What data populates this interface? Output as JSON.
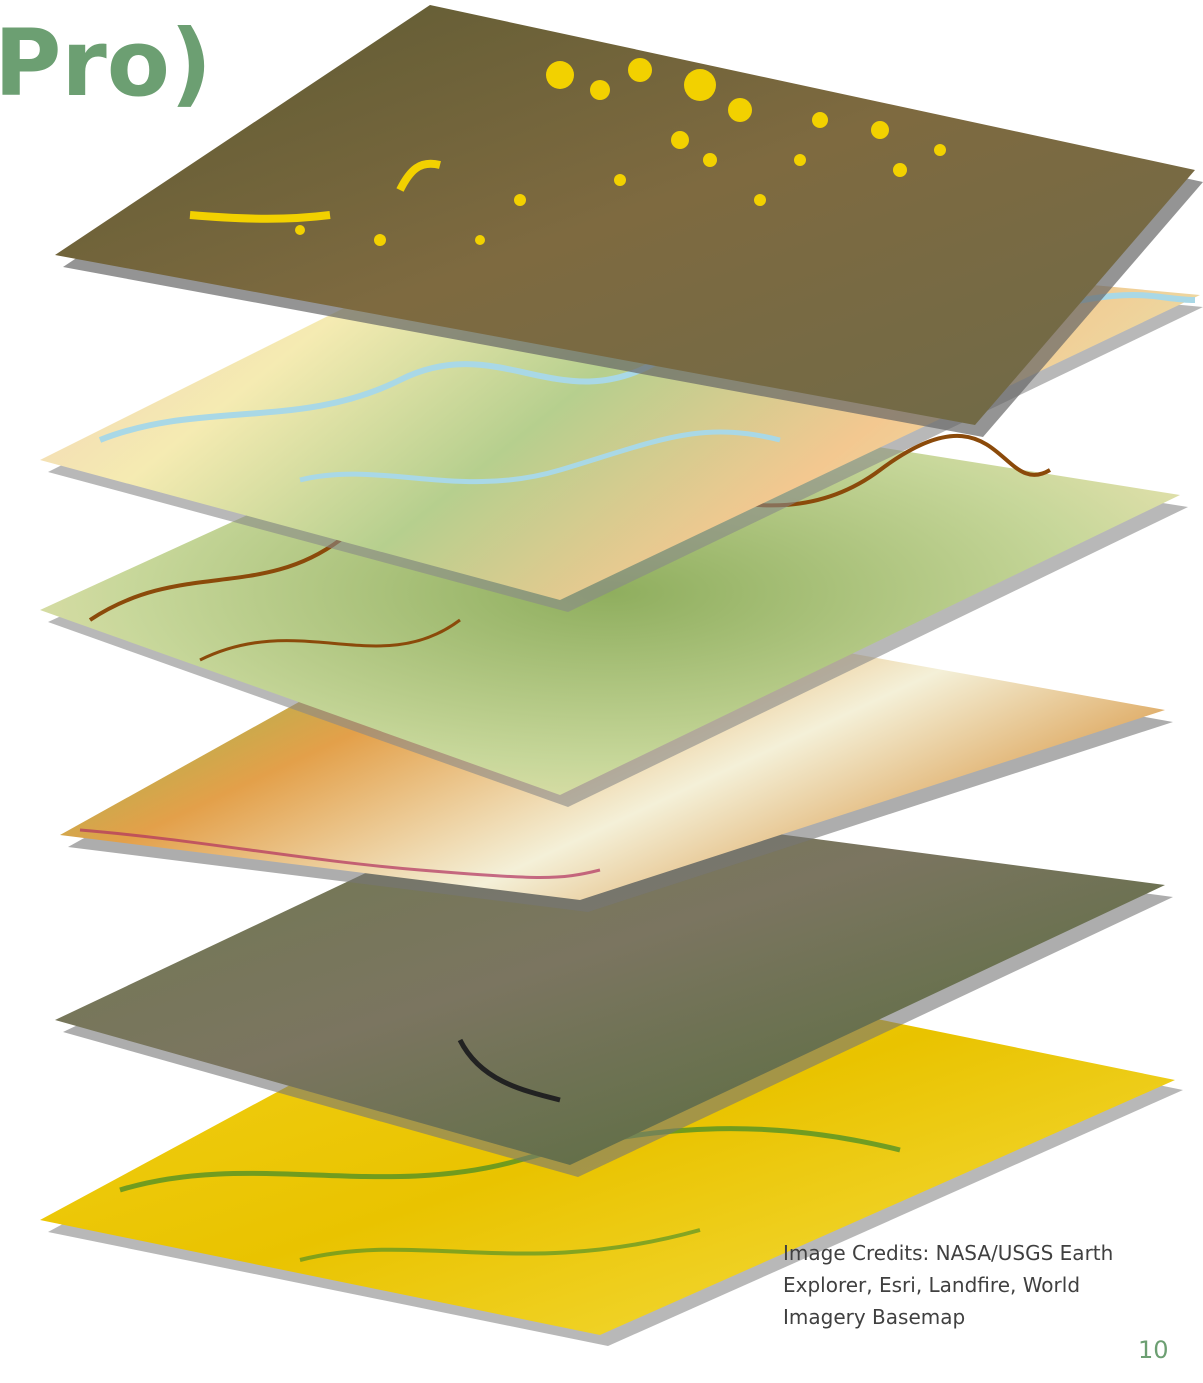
{
  "title": "Pro)",
  "credits": [
    "Image Credits: NASA/USGS Earth",
    "Explorer, Esri, Landfire, World",
    "Imagery Basemap"
  ],
  "page_number": "10"
}
